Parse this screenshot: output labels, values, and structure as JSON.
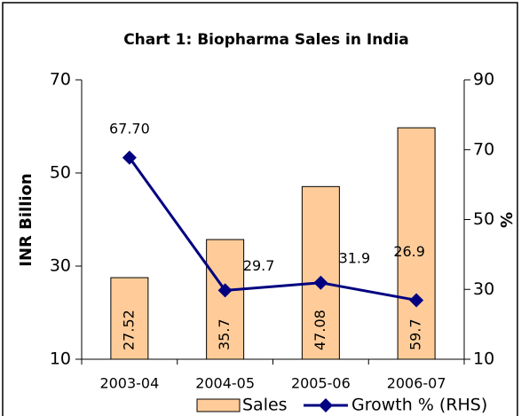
{
  "chart_data": {
    "type": "bar_line",
    "title": "Chart 1: Biopharma Sales in India",
    "categories": [
      "2003-04",
      "2004-05",
      "2005-06",
      "2006-07"
    ],
    "y_label": "INR Billion",
    "y2_label": "%",
    "ylim": [
      10,
      70
    ],
    "yticks": [
      10,
      30,
      50,
      70
    ],
    "y2lim": [
      10,
      90
    ],
    "y2ticks": [
      10,
      30,
      50,
      70,
      90
    ],
    "series": [
      {
        "name": "Sales",
        "type": "bar",
        "color": "#ffcc99",
        "values": [
          27.52,
          35.7,
          47.08,
          59.7
        ]
      },
      {
        "name": "Growth % (RHS)",
        "type": "line",
        "axis": "y2",
        "color": "#000080",
        "values": [
          67.7,
          29.7,
          31.9,
          26.9
        ],
        "value_labels": [
          "67.70",
          "29.7",
          "31.9",
          "26.9"
        ]
      }
    ]
  }
}
